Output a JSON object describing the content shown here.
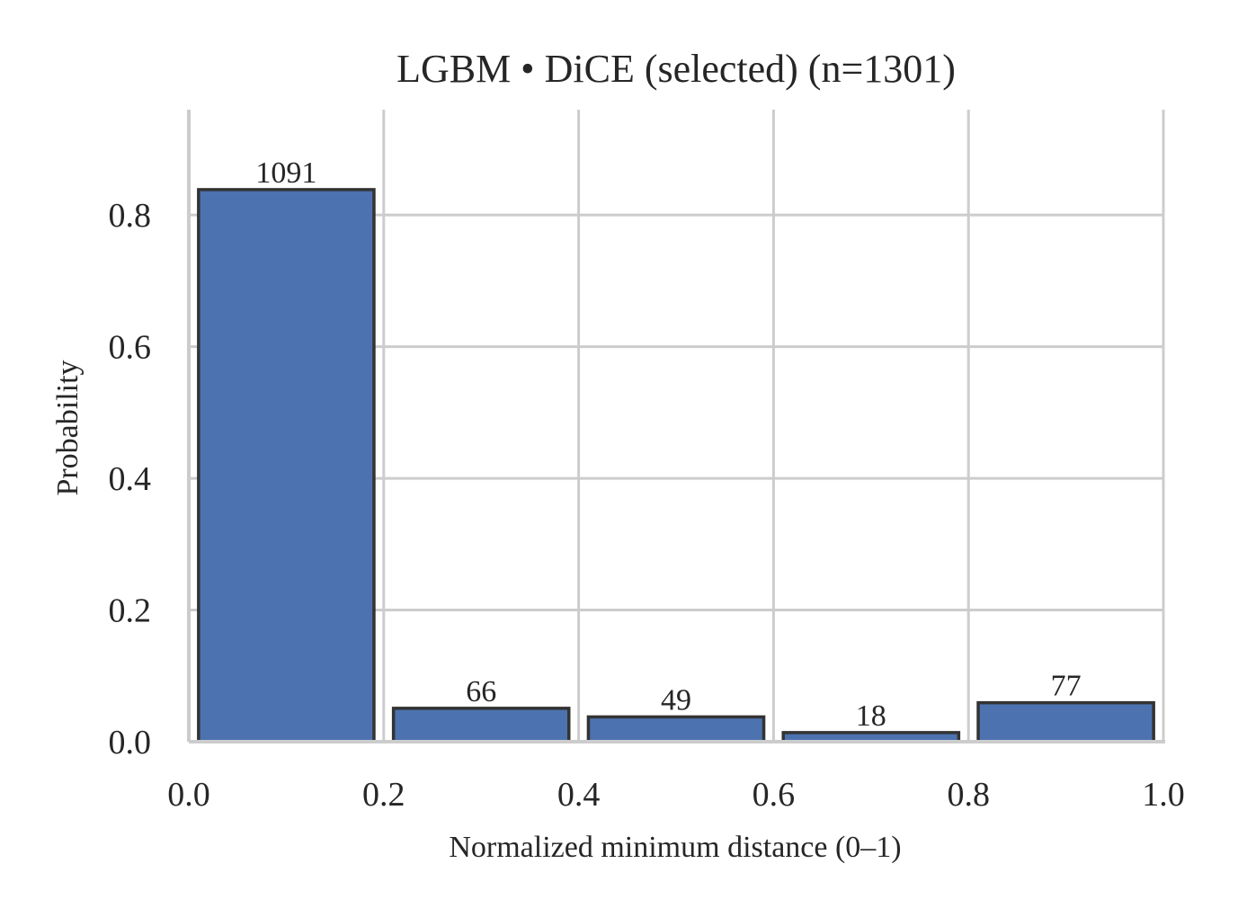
{
  "chart_data": {
    "type": "bar",
    "title": "LGBM • DiCE (selected)  (n=1301)",
    "xlabel": "Normalized minimum distance (0–1)",
    "ylabel": "Probability",
    "bins": [
      {
        "x0": 0.0,
        "x1": 0.2,
        "count": 1091,
        "label": "1091"
      },
      {
        "x0": 0.2,
        "x1": 0.4,
        "count": 66,
        "label": "66"
      },
      {
        "x0": 0.4,
        "x1": 0.6,
        "count": 49,
        "label": "49"
      },
      {
        "x0": 0.6,
        "x1": 0.8,
        "count": 18,
        "label": "18"
      },
      {
        "x0": 0.8,
        "x1": 1.0,
        "count": 77,
        "label": "77"
      }
    ],
    "n": 1301,
    "xlim": [
      0.0,
      1.0
    ],
    "ylim": [
      0.0,
      0.96
    ],
    "xticks": [
      0.0,
      0.2,
      0.4,
      0.6,
      0.8,
      1.0
    ],
    "xtick_labels": [
      "0.0",
      "0.2",
      "0.4",
      "0.6",
      "0.8",
      "1.0"
    ],
    "yticks": [
      0.0,
      0.2,
      0.4,
      0.6,
      0.8
    ],
    "ytick_labels": [
      "0.0",
      "0.2",
      "0.4",
      "0.6",
      "0.8"
    ],
    "grid": true,
    "bar_color": "#4c72b0",
    "edge_color": "#333333",
    "grid_color": "#cccccc"
  }
}
